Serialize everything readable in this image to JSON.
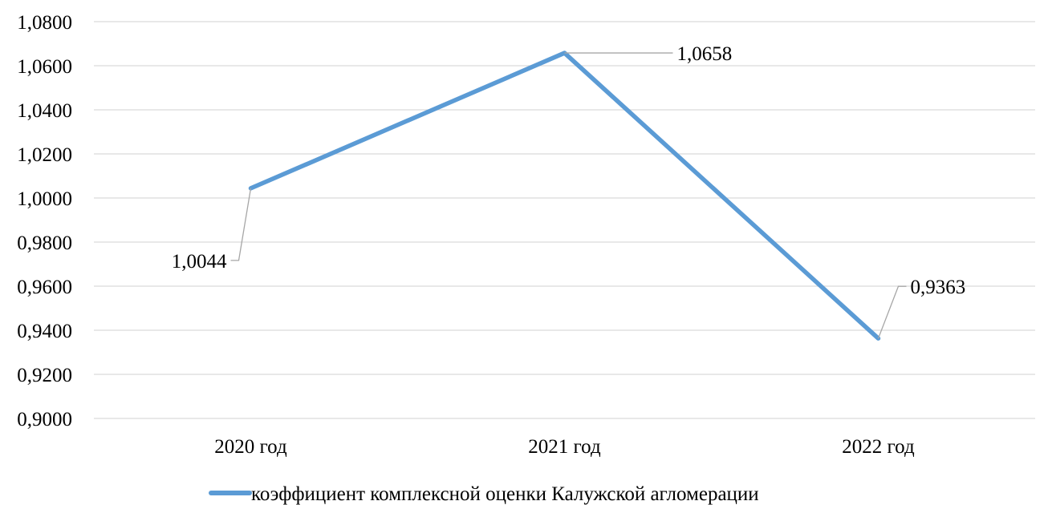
{
  "chart_data": {
    "type": "line",
    "categories": [
      "2020 год",
      "2021 год",
      "2022 год"
    ],
    "series": [
      {
        "name": "коэффициент комплексной оценки Калужской агломерации",
        "values": [
          1.0044,
          1.0658,
          0.9363
        ],
        "labels": [
          "1,0044",
          "1,0658",
          "0,9363"
        ],
        "color": "#5b9bd5"
      }
    ],
    "ylim": [
      0.9,
      1.08
    ],
    "yticks": [
      {
        "value": 0.9,
        "label": "0,9000"
      },
      {
        "value": 0.92,
        "label": "0,9200"
      },
      {
        "value": 0.94,
        "label": "0,9400"
      },
      {
        "value": 0.96,
        "label": "0,9600"
      },
      {
        "value": 0.98,
        "label": "0,9800"
      },
      {
        "value": 1.0,
        "label": "1,0000"
      },
      {
        "value": 1.02,
        "label": "1,0200"
      },
      {
        "value": 1.04,
        "label": "1,0400"
      },
      {
        "value": 1.06,
        "label": "1,0600"
      },
      {
        "value": 1.08,
        "label": "1,0800"
      }
    ],
    "grid": true,
    "legend_position": "bottom",
    "title": "",
    "xlabel": "",
    "ylabel": ""
  }
}
